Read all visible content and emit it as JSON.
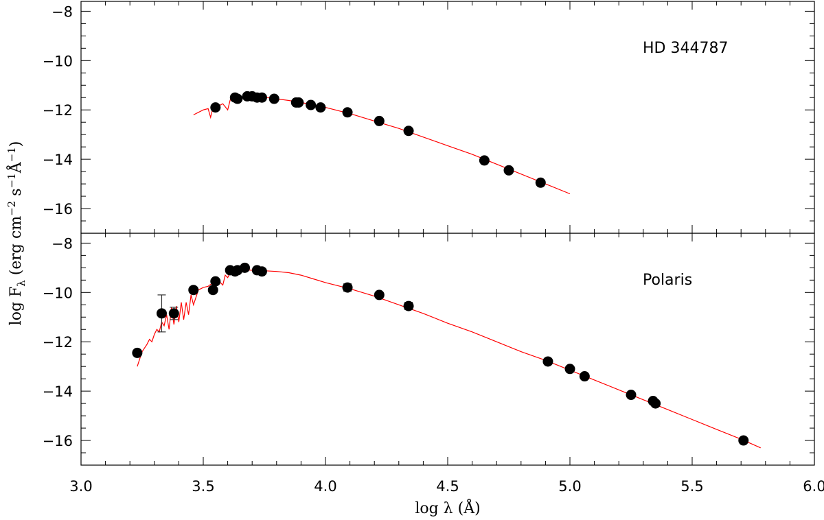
{
  "chart_data": {
    "type": "scatter",
    "xlabel": "log λ (Å)",
    "ylabel": "log F_λ (erg cm^-2 s^-1 Å^-1)",
    "xlim": [
      3.0,
      6.0
    ],
    "x_ticks": [
      3.0,
      3.5,
      4.0,
      4.5,
      5.0,
      5.5,
      6.0
    ],
    "x_tick_labels": [
      "3.0",
      "3.5",
      "4.0",
      "4.5",
      "5.0",
      "5.5",
      "6.0"
    ],
    "colors": {
      "model": "#ff0000",
      "points": "#000000",
      "axes": "#000000"
    },
    "panels": [
      {
        "label": "HD 344787",
        "ylim": [
          -17,
          -7.6
        ],
        "y_ticks": [
          -8,
          -10,
          -12,
          -14,
          -16
        ],
        "y_tick_labels": [
          "−8",
          "−10",
          "−12",
          "−14",
          "−16"
        ],
        "points": [
          {
            "x": 3.55,
            "y": -11.9
          },
          {
            "x": 3.63,
            "y": -11.5
          },
          {
            "x": 3.64,
            "y": -11.55
          },
          {
            "x": 3.68,
            "y": -11.45
          },
          {
            "x": 3.7,
            "y": -11.45
          },
          {
            "x": 3.72,
            "y": -11.5
          },
          {
            "x": 3.74,
            "y": -11.5
          },
          {
            "x": 3.79,
            "y": -11.55
          },
          {
            "x": 3.88,
            "y": -11.7
          },
          {
            "x": 3.89,
            "y": -11.7
          },
          {
            "x": 3.94,
            "y": -11.8
          },
          {
            "x": 3.98,
            "y": -11.9
          },
          {
            "x": 4.09,
            "y": -12.1
          },
          {
            "x": 4.22,
            "y": -12.45
          },
          {
            "x": 4.34,
            "y": -12.85
          },
          {
            "x": 4.65,
            "y": -14.05
          },
          {
            "x": 4.75,
            "y": -14.45
          },
          {
            "x": 4.88,
            "y": -14.95
          }
        ],
        "errorbars": [],
        "model": [
          [
            3.46,
            -12.2
          ],
          [
            3.48,
            -12.1
          ],
          [
            3.5,
            -12.0
          ],
          [
            3.52,
            -11.95
          ],
          [
            3.53,
            -12.3
          ],
          [
            3.54,
            -11.9
          ],
          [
            3.56,
            -11.85
          ],
          [
            3.58,
            -11.75
          ],
          [
            3.6,
            -12.0
          ],
          [
            3.61,
            -11.6
          ],
          [
            3.62,
            -11.5
          ],
          [
            3.63,
            -11.6
          ],
          [
            3.64,
            -11.45
          ],
          [
            3.66,
            -11.5
          ],
          [
            3.68,
            -11.45
          ],
          [
            3.72,
            -11.48
          ],
          [
            3.76,
            -11.5
          ],
          [
            3.8,
            -11.55
          ],
          [
            3.85,
            -11.62
          ],
          [
            3.9,
            -11.7
          ],
          [
            4.0,
            -11.9
          ],
          [
            4.1,
            -12.15
          ],
          [
            4.2,
            -12.45
          ],
          [
            4.3,
            -12.75
          ],
          [
            4.4,
            -13.1
          ],
          [
            4.5,
            -13.45
          ],
          [
            4.6,
            -13.8
          ],
          [
            4.7,
            -14.2
          ],
          [
            4.8,
            -14.6
          ],
          [
            4.9,
            -15.0
          ],
          [
            5.0,
            -15.4
          ]
        ]
      },
      {
        "label": "Polaris",
        "ylim": [
          -17,
          -7.6
        ],
        "y_ticks": [
          -8,
          -10,
          -12,
          -14,
          -16
        ],
        "y_tick_labels": [
          "−8",
          "−10",
          "−12",
          "−14",
          "−16"
        ],
        "points": [
          {
            "x": 3.23,
            "y": -12.45
          },
          {
            "x": 3.33,
            "y": -10.85
          },
          {
            "x": 3.38,
            "y": -10.85
          },
          {
            "x": 3.46,
            "y": -9.9
          },
          {
            "x": 3.54,
            "y": -9.9
          },
          {
            "x": 3.55,
            "y": -9.55
          },
          {
            "x": 3.61,
            "y": -9.1
          },
          {
            "x": 3.63,
            "y": -9.15
          },
          {
            "x": 3.64,
            "y": -9.1
          },
          {
            "x": 3.67,
            "y": -9.0
          },
          {
            "x": 3.72,
            "y": -9.1
          },
          {
            "x": 3.74,
            "y": -9.15
          },
          {
            "x": 4.09,
            "y": -9.8
          },
          {
            "x": 4.22,
            "y": -10.1
          },
          {
            "x": 4.34,
            "y": -10.55
          },
          {
            "x": 4.91,
            "y": -12.8
          },
          {
            "x": 5.0,
            "y": -13.1
          },
          {
            "x": 5.06,
            "y": -13.4
          },
          {
            "x": 5.25,
            "y": -14.15
          },
          {
            "x": 5.34,
            "y": -14.4
          },
          {
            "x": 5.35,
            "y": -14.5
          },
          {
            "x": 5.71,
            "y": -16.0
          }
        ],
        "errorbars": [
          {
            "x": 3.33,
            "y": -10.85,
            "low": -11.6,
            "high": -10.1
          },
          {
            "x": 3.38,
            "y": -10.85,
            "low": -11.1,
            "high": -10.6
          },
          {
            "x": 4.09,
            "y": -9.8,
            "low": -9.95,
            "high": -9.65
          },
          {
            "x": 4.34,
            "y": -10.55,
            "low": -10.7,
            "high": -10.4
          }
        ],
        "model": [
          [
            3.23,
            -13.0
          ],
          [
            3.24,
            -12.7
          ],
          [
            3.25,
            -12.4
          ],
          [
            3.27,
            -12.1
          ],
          [
            3.28,
            -11.9
          ],
          [
            3.29,
            -12.0
          ],
          [
            3.3,
            -11.7
          ],
          [
            3.31,
            -11.5
          ],
          [
            3.32,
            -11.6
          ],
          [
            3.33,
            -11.2
          ],
          [
            3.34,
            -11.35
          ],
          [
            3.35,
            -10.9
          ],
          [
            3.36,
            -11.5
          ],
          [
            3.37,
            -10.6
          ],
          [
            3.38,
            -11.3
          ],
          [
            3.39,
            -10.55
          ],
          [
            3.4,
            -11.2
          ],
          [
            3.41,
            -10.4
          ],
          [
            3.42,
            -11.1
          ],
          [
            3.43,
            -10.4
          ],
          [
            3.44,
            -10.9
          ],
          [
            3.45,
            -10.1
          ],
          [
            3.46,
            -10.5
          ],
          [
            3.48,
            -9.9
          ],
          [
            3.5,
            -9.8
          ],
          [
            3.52,
            -9.75
          ],
          [
            3.54,
            -9.6
          ],
          [
            3.56,
            -9.5
          ],
          [
            3.58,
            -9.7
          ],
          [
            3.59,
            -9.3
          ],
          [
            3.6,
            -9.4
          ],
          [
            3.61,
            -9.2
          ],
          [
            3.62,
            -9.15
          ],
          [
            3.64,
            -9.1
          ],
          [
            3.66,
            -9.08
          ],
          [
            3.7,
            -9.1
          ],
          [
            3.75,
            -9.12
          ],
          [
            3.8,
            -9.15
          ],
          [
            3.85,
            -9.2
          ],
          [
            3.9,
            -9.3
          ],
          [
            3.95,
            -9.45
          ],
          [
            4.0,
            -9.6
          ],
          [
            4.1,
            -9.85
          ],
          [
            4.2,
            -10.15
          ],
          [
            4.3,
            -10.5
          ],
          [
            4.4,
            -10.85
          ],
          [
            4.5,
            -11.25
          ],
          [
            4.6,
            -11.6
          ],
          [
            4.7,
            -12.0
          ],
          [
            4.8,
            -12.4
          ],
          [
            4.9,
            -12.75
          ],
          [
            5.0,
            -13.15
          ],
          [
            5.1,
            -13.55
          ],
          [
            5.2,
            -13.95
          ],
          [
            5.3,
            -14.35
          ],
          [
            5.4,
            -14.75
          ],
          [
            5.5,
            -15.15
          ],
          [
            5.6,
            -15.55
          ],
          [
            5.7,
            -15.95
          ],
          [
            5.78,
            -16.3
          ]
        ]
      }
    ]
  }
}
